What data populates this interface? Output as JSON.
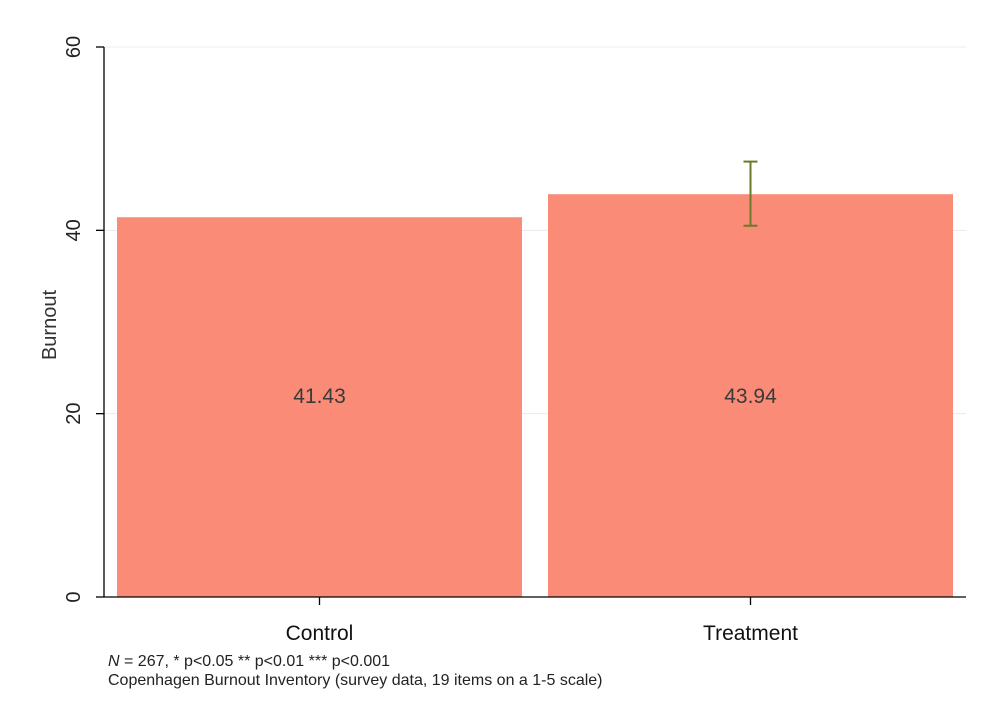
{
  "chart_data": {
    "type": "bar",
    "categories": [
      "Control",
      "Treatment"
    ],
    "values": [
      41.43,
      43.94
    ],
    "value_labels": [
      "41.43",
      "43.94"
    ],
    "error_bars": [
      null,
      {
        "low": 40.5,
        "high": 47.5
      }
    ],
    "title": "",
    "xlabel": "",
    "ylabel": "Burnout",
    "ylim": [
      0,
      60
    ],
    "yticks": [
      0,
      20,
      40,
      60
    ],
    "grid": true,
    "legend": "none",
    "bar_color": "#fa8b77",
    "error_bar_color": "#6b7a2a"
  },
  "notes": {
    "line1_n_symbol": "N",
    "line1_rest": " = 267, * p<0.05 ** p<0.01 *** p<0.001",
    "line2": "Copenhagen Burnout Inventory (survey data, 19 items on a 1-5 scale)"
  }
}
